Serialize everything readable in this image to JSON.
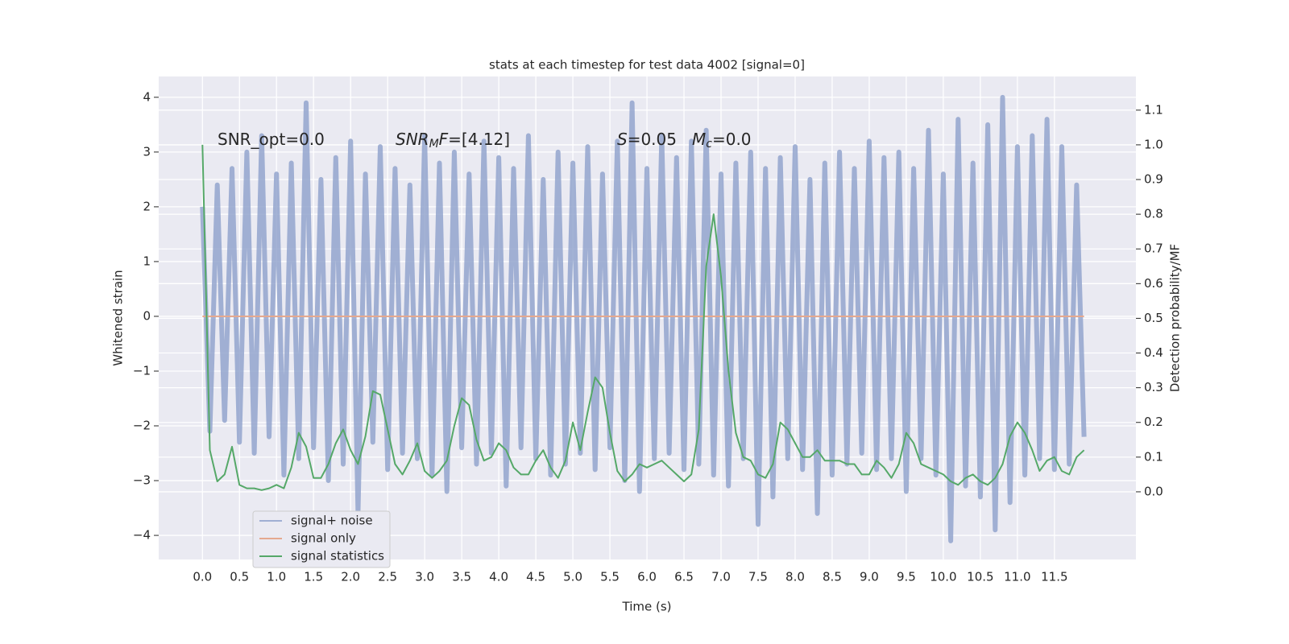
{
  "chart_data": {
    "type": "line",
    "title": "stats at each timestep for test data 4002 [signal=0]",
    "xlabel": "Time (s)",
    "ylabel": "Whitened strain",
    "y2label": "Detection probability/MF",
    "annotations": [
      [
        {
          "text": "SNR_opt=0.0"
        }
      ],
      [
        {
          "text": "SNR",
          "italic": true
        },
        {
          "text": "M",
          "italic": true,
          "sub": true
        },
        {
          "text": "F",
          "italic": true
        },
        {
          "text": "=[4.12]"
        }
      ],
      [
        {
          "text": "S",
          "italic": true
        },
        {
          "text": "=0.05"
        }
      ],
      [
        {
          "text": "M",
          "italic": true
        },
        {
          "text": "c",
          "italic": true,
          "sub": true
        },
        {
          "text": "=0.0"
        }
      ]
    ],
    "x": [
      0.0,
      0.1,
      0.2,
      0.3,
      0.4,
      0.5,
      0.6,
      0.7,
      0.8,
      0.9,
      1.0,
      1.1,
      1.2,
      1.3,
      1.4,
      1.5,
      1.6,
      1.7,
      1.8,
      1.9,
      2.0,
      2.1,
      2.2,
      2.3,
      2.4,
      2.5,
      2.6,
      2.7,
      2.8,
      2.9,
      3.0,
      3.1,
      3.2,
      3.3,
      3.4,
      3.5,
      3.6,
      3.7,
      3.8,
      3.9,
      4.0,
      4.1,
      4.2,
      4.3,
      4.4,
      4.5,
      4.6,
      4.7,
      4.8,
      4.9,
      5.0,
      5.1,
      5.2,
      5.3,
      5.4,
      5.5,
      5.6,
      5.7,
      5.8,
      5.9,
      6.0,
      6.1,
      6.2,
      6.3,
      6.4,
      6.5,
      6.6,
      6.7,
      6.8,
      6.9,
      7.0,
      7.1,
      7.2,
      7.3,
      7.4,
      7.5,
      7.6,
      7.7,
      7.8,
      7.9,
      8.0,
      8.1,
      8.2,
      8.3,
      8.4,
      8.5,
      8.6,
      8.7,
      8.8,
      8.9,
      9.0,
      9.1,
      9.2,
      9.3,
      9.4,
      9.5,
      9.6,
      9.7,
      9.8,
      9.9,
      10.0,
      10.1,
      10.2,
      10.3,
      10.4,
      10.5,
      10.6,
      10.7,
      10.8,
      10.9,
      11.0,
      11.1,
      11.2,
      11.3,
      11.4,
      11.5,
      11.6,
      11.7,
      11.8,
      11.9
    ],
    "series": [
      {
        "name": "signal+ noise",
        "color": "#8da0cb",
        "opacity": 0.8,
        "values": [
          2.0,
          -2.1,
          2.4,
          -1.9,
          2.7,
          -2.3,
          3.0,
          -2.5,
          3.3,
          -2.2,
          2.6,
          -2.9,
          2.8,
          -2.6,
          3.9,
          -2.4,
          2.5,
          -3.0,
          2.9,
          -2.7,
          3.2,
          -3.6,
          2.6,
          -2.3,
          3.1,
          -2.8,
          2.7,
          -2.5,
          2.4,
          -2.6,
          3.3,
          -2.9,
          2.8,
          -3.2,
          3.0,
          -2.4,
          2.6,
          -2.7,
          3.2,
          -2.5,
          2.9,
          -3.1,
          2.7,
          -2.4,
          3.3,
          -2.6,
          2.5,
          -2.9,
          3.0,
          -2.7,
          2.8,
          -2.5,
          3.1,
          -2.8,
          2.6,
          -2.4,
          3.2,
          -3.0,
          3.9,
          -3.2,
          2.7,
          -2.6,
          3.3,
          -2.5,
          2.9,
          -2.8,
          3.2,
          -2.7,
          3.4,
          -2.9,
          2.6,
          -3.1,
          2.8,
          -2.6,
          3.0,
          -3.8,
          2.7,
          -3.3,
          2.9,
          -2.6,
          3.1,
          -2.8,
          2.5,
          -3.6,
          2.8,
          -2.9,
          3.0,
          -2.7,
          2.7,
          -2.5,
          3.2,
          -2.8,
          2.9,
          -2.6,
          3.0,
          -3.2,
          2.7,
          -2.6,
          3.4,
          -2.9,
          2.6,
          -4.1,
          3.6,
          -3.1,
          2.8,
          -3.3,
          3.5,
          -3.9,
          4.0,
          -3.4,
          3.1,
          -2.9,
          3.3,
          -2.6,
          3.6,
          -2.8,
          3.1,
          -2.7,
          2.4,
          -2.2
        ]
      },
      {
        "name": "signal only",
        "color": "#e5a98f",
        "opacity": 1,
        "values": [
          0,
          0,
          0,
          0,
          0,
          0,
          0,
          0,
          0,
          0,
          0,
          0,
          0,
          0,
          0,
          0,
          0,
          0,
          0,
          0,
          0,
          0,
          0,
          0,
          0,
          0,
          0,
          0,
          0,
          0,
          0,
          0,
          0,
          0,
          0,
          0,
          0,
          0,
          0,
          0,
          0,
          0,
          0,
          0,
          0,
          0,
          0,
          0,
          0,
          0,
          0,
          0,
          0,
          0,
          0,
          0,
          0,
          0,
          0,
          0,
          0,
          0,
          0,
          0,
          0,
          0,
          0,
          0,
          0,
          0,
          0,
          0,
          0,
          0,
          0,
          0,
          0,
          0,
          0,
          0,
          0,
          0,
          0,
          0,
          0,
          0,
          0,
          0,
          0,
          0,
          0,
          0,
          0,
          0,
          0,
          0,
          0,
          0,
          0,
          0,
          0,
          0,
          0,
          0,
          0,
          0,
          0,
          0,
          0,
          0,
          0,
          0,
          0,
          0,
          0,
          0,
          0,
          0,
          0,
          0
        ]
      },
      {
        "name": "signal statistics",
        "color": "#55a868",
        "opacity": 1,
        "axis": "y2",
        "values": [
          1.0,
          0.12,
          0.03,
          0.05,
          0.13,
          0.02,
          0.01,
          0.01,
          0.005,
          0.01,
          0.02,
          0.01,
          0.07,
          0.17,
          0.13,
          0.04,
          0.04,
          0.08,
          0.14,
          0.18,
          0.12,
          0.08,
          0.16,
          0.29,
          0.28,
          0.18,
          0.08,
          0.05,
          0.09,
          0.14,
          0.06,
          0.04,
          0.06,
          0.09,
          0.19,
          0.27,
          0.25,
          0.15,
          0.09,
          0.1,
          0.14,
          0.12,
          0.07,
          0.05,
          0.05,
          0.09,
          0.12,
          0.07,
          0.04,
          0.09,
          0.2,
          0.12,
          0.23,
          0.33,
          0.3,
          0.17,
          0.06,
          0.03,
          0.05,
          0.08,
          0.07,
          0.08,
          0.09,
          0.07,
          0.05,
          0.03,
          0.05,
          0.18,
          0.65,
          0.8,
          0.62,
          0.35,
          0.17,
          0.1,
          0.09,
          0.05,
          0.04,
          0.08,
          0.2,
          0.18,
          0.14,
          0.1,
          0.1,
          0.12,
          0.09,
          0.09,
          0.09,
          0.08,
          0.08,
          0.05,
          0.05,
          0.09,
          0.07,
          0.04,
          0.08,
          0.17,
          0.14,
          0.08,
          0.07,
          0.06,
          0.05,
          0.03,
          0.02,
          0.04,
          0.05,
          0.03,
          0.02,
          0.04,
          0.08,
          0.16,
          0.2,
          0.17,
          0.12,
          0.06,
          0.09,
          0.1,
          0.06,
          0.05,
          0.1,
          0.12
        ]
      }
    ],
    "xlim": [
      -0.59,
      12.6
    ],
    "xticks": [
      {
        "value": 0,
        "label": "0.0"
      },
      0.5,
      {
        "value": 1,
        "label": "1.0"
      },
      1.5,
      {
        "value": 2,
        "label": "2.0"
      },
      2.5,
      {
        "value": 3,
        "label": "3.0"
      },
      3.5,
      {
        "value": 4,
        "label": "4.0"
      },
      4.5,
      {
        "value": 5,
        "label": "5.0"
      },
      5.5,
      {
        "value": 6,
        "label": "6.0"
      },
      6.5,
      {
        "value": 7,
        "label": "7.0"
      },
      7.5,
      {
        "value": 8,
        "label": "8.0"
      },
      8.5,
      {
        "value": 9,
        "label": "9.0"
      },
      9.5,
      {
        "value": 10,
        "label": "10.0"
      },
      10.5,
      {
        "value": 11,
        "label": "11.0"
      },
      11.5
    ],
    "ylim": [
      -4.44,
      4.38
    ],
    "yticks": [
      {
        "value": -4,
        "label": "−4"
      },
      {
        "value": -3,
        "label": "−3"
      },
      {
        "value": -2,
        "label": "−2"
      },
      {
        "value": -1,
        "label": "−1"
      },
      0,
      1,
      2,
      3,
      4
    ],
    "y2lim": [
      -0.195,
      1.197
    ],
    "y2ticks": [
      {
        "value": 0,
        "label": "0.0"
      },
      0.1,
      0.2,
      0.3,
      0.4,
      0.5,
      0.6,
      0.7,
      0.8,
      0.9,
      {
        "value": 1,
        "label": "1.0"
      },
      1.1
    ],
    "grid": true,
    "legend": "lower left"
  }
}
